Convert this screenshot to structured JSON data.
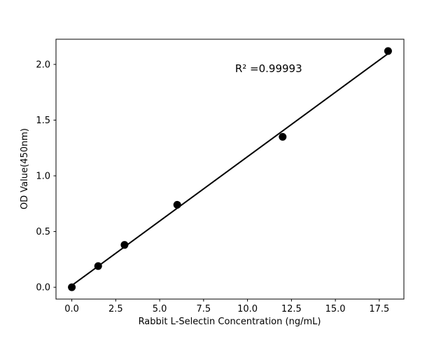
{
  "chart_data": {
    "type": "scatter",
    "title": "",
    "xlabel": "Rabbit L-Selectin Concentration (ng/mL)",
    "ylabel": "OD Value(450nm)",
    "x": [
      0,
      1.5,
      3,
      6,
      12,
      18
    ],
    "y": [
      0.0,
      0.19,
      0.38,
      0.74,
      1.35,
      2.12
    ],
    "fit_line": {
      "x1": 0,
      "y1": 0.016,
      "x2": 18,
      "y2": 2.097
    },
    "annotation": {
      "text": "R² =0.99993",
      "x": 11.2,
      "y": 1.93
    },
    "xtick_values": [
      0,
      2.5,
      5,
      7.5,
      10,
      12.5,
      15,
      17.5
    ],
    "xtick_labels": [
      "0.0",
      "2.5",
      "5.0",
      "7.5",
      "10.0",
      "12.5",
      "15.0",
      "17.5"
    ],
    "ytick_values": [
      0,
      0.5,
      1,
      1.5,
      2
    ],
    "ytick_labels": [
      "0.0",
      "0.5",
      "1.0",
      "1.5",
      "2.0"
    ],
    "xlim": [
      -0.9,
      18.9
    ],
    "ylim": [
      -0.106,
      2.226
    ],
    "grid": false,
    "legend": null,
    "marker_size_px": 5.5,
    "colors": {
      "marker": "#000000",
      "line": "#000000",
      "axis": "#000000",
      "text": "#000000",
      "background": "#ffffff"
    }
  }
}
